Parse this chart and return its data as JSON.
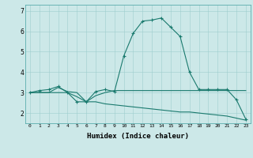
{
  "xlabel": "Humidex (Indice chaleur)",
  "bg_color": "#cce8e8",
  "line_color": "#1a7a6e",
  "xlim": [
    -0.5,
    23.5
  ],
  "ylim": [
    1.5,
    7.3
  ],
  "yticks": [
    2,
    3,
    4,
    5,
    6,
    7
  ],
  "xticks": [
    0,
    1,
    2,
    3,
    4,
    5,
    6,
    7,
    8,
    9,
    10,
    11,
    12,
    13,
    14,
    15,
    16,
    17,
    18,
    19,
    20,
    21,
    22,
    23
  ],
  "series": [
    {
      "x": [
        0,
        1,
        2,
        3,
        4,
        5,
        6,
        7,
        8,
        9,
        10,
        11,
        12,
        13,
        14,
        15,
        16,
        17,
        18,
        19,
        20,
        21,
        22,
        23
      ],
      "y": [
        3.0,
        3.1,
        3.15,
        3.3,
        3.0,
        2.55,
        2.55,
        3.05,
        3.15,
        3.05,
        4.8,
        5.9,
        6.5,
        6.55,
        6.65,
        6.2,
        5.75,
        4.0,
        3.15,
        3.15,
        3.15,
        3.15,
        2.65,
        1.7
      ],
      "marker": "+"
    },
    {
      "x": [
        0,
        1,
        2,
        3,
        4,
        5,
        6,
        7,
        8,
        9,
        10,
        11,
        12,
        13,
        14,
        15,
        16,
        17,
        18,
        19,
        20,
        21,
        22,
        23
      ],
      "y": [
        3.0,
        3.0,
        3.0,
        3.25,
        3.05,
        3.0,
        2.55,
        2.85,
        3.0,
        3.1,
        3.1,
        3.1,
        3.1,
        3.1,
        3.1,
        3.1,
        3.1,
        3.1,
        3.1,
        3.1,
        3.1,
        3.1,
        3.1,
        3.1
      ],
      "marker": null
    },
    {
      "x": [
        0,
        1,
        2,
        3,
        4,
        5,
        6,
        7,
        8,
        9,
        10,
        11,
        12,
        13,
        14,
        15,
        16,
        17,
        18,
        19,
        20,
        21,
        22,
        23
      ],
      "y": [
        3.0,
        3.0,
        3.0,
        3.0,
        3.0,
        2.8,
        2.55,
        2.55,
        2.45,
        2.4,
        2.35,
        2.3,
        2.25,
        2.2,
        2.15,
        2.1,
        2.05,
        2.05,
        2.0,
        1.95,
        1.9,
        1.85,
        1.75,
        1.65
      ],
      "marker": null
    }
  ]
}
